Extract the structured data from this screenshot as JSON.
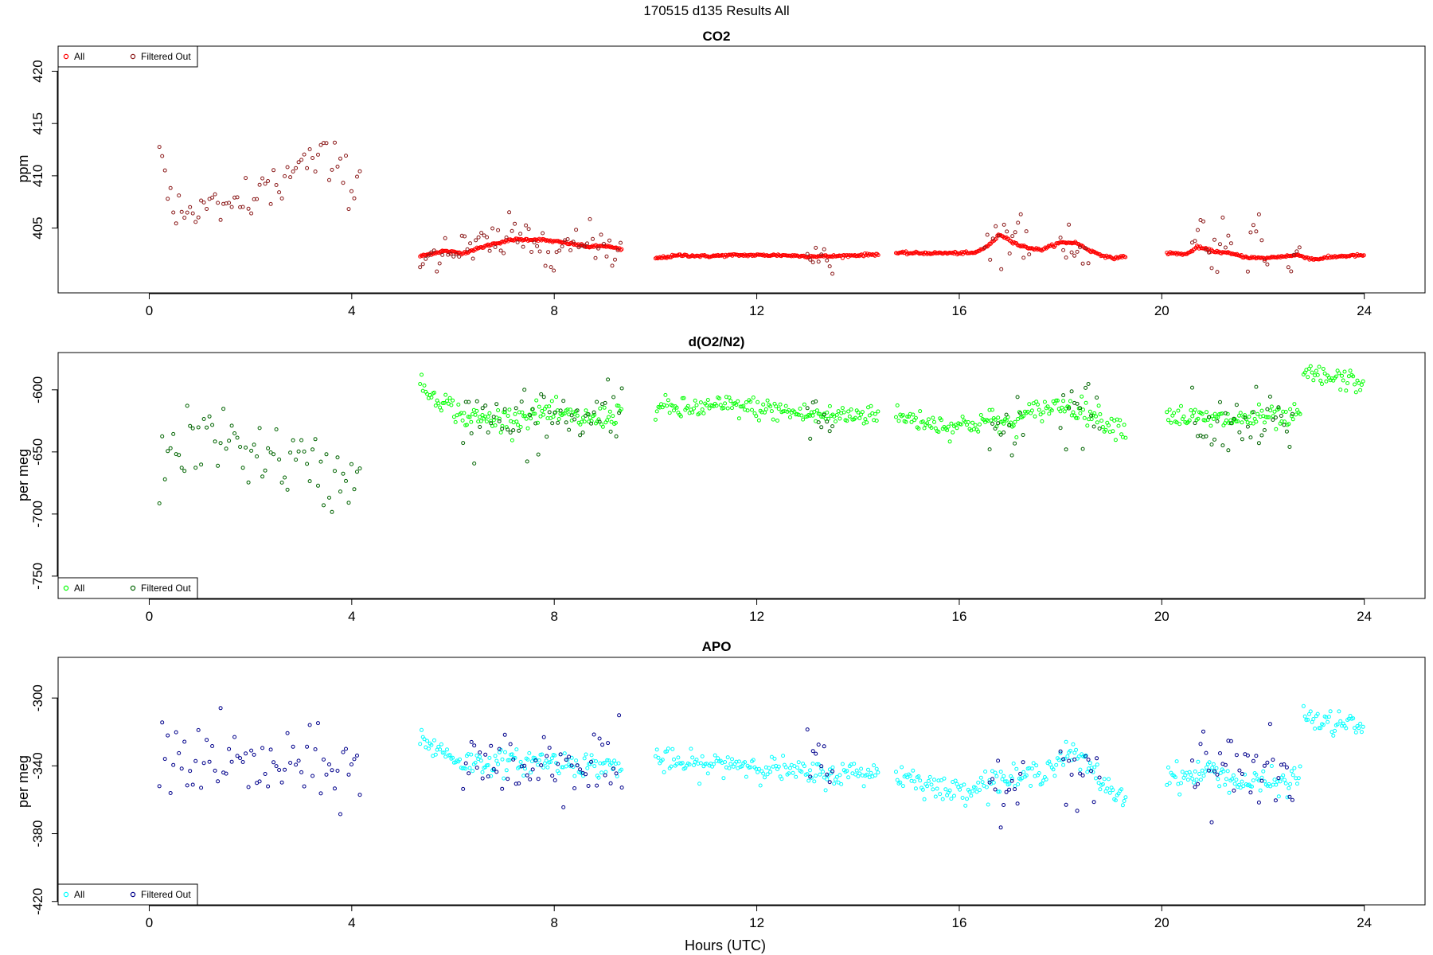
{
  "figure": {
    "title": "170515   d135   Results All",
    "xlabel": "Hours (UTC)"
  },
  "chart_data": [
    {
      "id": "co2",
      "type": "scatter",
      "title": "CO2",
      "ylabel": "ppm",
      "xlim": [
        -1.8,
        25.2
      ],
      "ylim": [
        398.8,
        422.4
      ],
      "xticks": [
        0,
        4,
        8,
        12,
        16,
        20,
        24
      ],
      "yticks": [
        405,
        410,
        415,
        420
      ],
      "legend_position": "top-left",
      "grid": false,
      "series": [
        {
          "name": "All",
          "color": "#ff0000",
          "segments": [
            {
              "x": [
                5.35,
                5.8,
                6.2,
                6.8,
                7.2,
                7.7,
                8.2,
                8.7,
                9.0,
                9.35
              ],
              "y": [
                402.3,
                402.8,
                402.6,
                403.5,
                403.9,
                403.9,
                403.6,
                403.2,
                403.3,
                402.9
              ]
            },
            {
              "x": [
                10.0,
                10.5,
                11.0,
                11.5,
                12.0,
                12.5,
                13.0,
                13.5,
                14.0,
                14.4
              ],
              "y": [
                402.1,
                402.4,
                402.3,
                402.4,
                402.4,
                402.4,
                402.3,
                402.3,
                402.4,
                402.5
              ]
            },
            {
              "x": [
                14.75,
                15.2,
                15.8,
                16.3,
                16.6,
                16.8,
                17.2,
                17.6,
                18.0,
                18.3,
                18.6,
                19.0,
                19.3
              ],
              "y": [
                402.6,
                402.6,
                402.6,
                402.6,
                403.4,
                404.4,
                403.3,
                402.9,
                403.6,
                403.6,
                402.8,
                402.1,
                402.3
              ]
            },
            {
              "x": [
                20.1,
                20.5,
                20.7,
                21.0,
                21.3,
                21.7,
                22.0,
                22.4,
                22.7,
                23.0,
                23.5,
                24.0
              ],
              "y": [
                402.6,
                402.5,
                403.2,
                402.8,
                402.6,
                402.2,
                402.1,
                402.3,
                402.4,
                402.0,
                402.3,
                402.4
              ]
            }
          ],
          "noise": 0.06,
          "spacing": 0.022
        },
        {
          "name": "Filtered Out",
          "color": "#8b1a1a",
          "segments": [
            {
              "x": [
                0.2,
                0.5,
                1.0,
                1.5,
                2.0,
                2.5,
                3.0,
                3.5,
                4.0,
                4.2
              ],
              "y": [
                411.0,
                406.5,
                406.5,
                406.5,
                408.0,
                409.0,
                411.0,
                411.5,
                409.5,
                409.5
              ]
            },
            {
              "x": [
                5.35,
                5.8,
                6.2,
                6.8,
                7.2,
                7.7,
                8.2,
                8.7,
                9.0,
                9.35
              ],
              "y": [
                402.3,
                402.8,
                402.6,
                403.5,
                403.9,
                403.9,
                403.6,
                403.2,
                403.3,
                402.9
              ]
            },
            {
              "x": [
                13.0,
                13.15,
                13.3,
                13.5
              ],
              "y": [
                402.5,
                403.0,
                402.6,
                402.5
              ]
            },
            {
              "x": [
                16.5,
                16.8,
                17.0,
                17.2,
                17.4
              ],
              "y": [
                403.0,
                404.2,
                404.2,
                404.3,
                403.0
              ]
            },
            {
              "x": [
                18.0,
                18.3,
                18.6
              ],
              "y": [
                403.9,
                403.4,
                402.8
              ]
            },
            {
              "x": [
                20.6,
                20.75,
                20.9,
                21.1,
                21.25,
                21.4
              ],
              "y": [
                402.8,
                405.5,
                402.8,
                402.8,
                405.8,
                402.8
              ]
            },
            {
              "x": [
                21.7,
                21.9,
                22.1
              ],
              "y": [
                402.4,
                405.0,
                402.3
              ]
            },
            {
              "x": [
                22.5,
                22.6,
                22.75
              ],
              "y": [
                402.5,
                403.3,
                402.4
              ]
            }
          ],
          "noise": 1.1,
          "spacing": 0.055
        }
      ]
    },
    {
      "id": "o2n2",
      "type": "scatter",
      "title": "d(O2/N2)",
      "ylabel": "per meg",
      "xlim": [
        -1.8,
        25.2
      ],
      "ylim": [
        -768,
        -570
      ],
      "xticks": [
        0,
        4,
        8,
        12,
        16,
        20,
        24
      ],
      "yticks": [
        -750,
        -700,
        -650,
        -600
      ],
      "legend_position": "bottom-left",
      "grid": false,
      "series": [
        {
          "name": "All",
          "color": "#00ff00",
          "segments": [
            {
              "x": [
                5.35,
                5.8,
                6.2,
                6.8,
                7.3,
                7.8,
                8.3,
                8.8,
                9.35
              ],
              "y": [
                -598,
                -608,
                -622,
                -624,
                -622,
                -618,
                -622,
                -624,
                -618
              ]
            },
            {
              "x": [
                10.0,
                10.5,
                11.0,
                11.5,
                12.0,
                12.5,
                13.0,
                13.5,
                14.0,
                14.4
              ],
              "y": [
                -614,
                -616,
                -614,
                -613,
                -615,
                -617,
                -620,
                -621,
                -620,
                -618
              ]
            },
            {
              "x": [
                14.75,
                15.2,
                15.7,
                16.2,
                16.6,
                17.0,
                17.5,
                18.0,
                18.5,
                19.0,
                19.3
              ],
              "y": [
                -622,
                -624,
                -629,
                -628,
                -624,
                -628,
                -617,
                -612,
                -617,
                -628,
                -630
              ]
            },
            {
              "x": [
                20.1,
                20.5,
                21.0,
                21.5,
                22.0,
                22.5,
                22.75
              ],
              "y": [
                -620,
                -622,
                -624,
                -624,
                -622,
                -624,
                -620
              ]
            },
            {
              "x": [
                22.8,
                23.2,
                23.6,
                24.0
              ],
              "y": [
                -587,
                -590,
                -592,
                -595
              ]
            }
          ],
          "noise": 4.5,
          "spacing": 0.028
        },
        {
          "name": "Filtered Out",
          "color": "#006400",
          "segments": [
            {
              "x": [
                0.2,
                0.5,
                1.0,
                1.5,
                2.0,
                2.5,
                3.0,
                3.5,
                4.0,
                4.2
              ],
              "y": [
                -668,
                -648,
                -640,
                -640,
                -648,
                -656,
                -660,
                -672,
                -668,
                -650
              ]
            },
            {
              "x": [
                6.2,
                6.8,
                7.3,
                7.8,
                8.3,
                8.8,
                9.35
              ],
              "y": [
                -630,
                -625,
                -630,
                -622,
                -624,
                -625,
                -618
              ]
            },
            {
              "x": [
                13.0,
                13.5
              ],
              "y": [
                -624,
                -622
              ]
            },
            {
              "x": [
                16.6,
                17.0,
                17.3
              ],
              "y": [
                -628,
                -632,
                -625
              ]
            },
            {
              "x": [
                18.0,
                18.4,
                18.8
              ],
              "y": [
                -616,
                -618,
                -622
              ]
            },
            {
              "x": [
                20.6,
                21.0,
                21.4,
                22.0,
                22.6
              ],
              "y": [
                -625,
                -640,
                -628,
                -630,
                -625
              ]
            }
          ],
          "noise": 14,
          "spacing": 0.055
        }
      ]
    },
    {
      "id": "apo",
      "type": "scatter",
      "title": "APO",
      "ylabel": "per meg",
      "xlim": [
        -1.8,
        25.2
      ],
      "ylim": [
        -422,
        -276
      ],
      "xticks": [
        0,
        4,
        8,
        12,
        16,
        20,
        24
      ],
      "yticks": [
        -420,
        -380,
        -340,
        -300
      ],
      "legend_position": "bottom-left",
      "grid": false,
      "series": [
        {
          "name": "All",
          "color": "#00ffff",
          "segments": [
            {
              "x": [
                5.35,
                5.7,
                6.2,
                6.8,
                7.3,
                7.8,
                8.3,
                8.8,
                9.35
              ],
              "y": [
                -324,
                -330,
                -338,
                -338,
                -338,
                -337,
                -338,
                -340,
                -340
              ]
            },
            {
              "x": [
                10.0,
                10.5,
                11.0,
                11.5,
                12.0,
                12.5,
                13.0,
                13.5,
                14.0,
                14.4
              ],
              "y": [
                -336,
                -339,
                -340,
                -338,
                -340,
                -342,
                -345,
                -345,
                -344,
                -344
              ]
            },
            {
              "x": [
                14.75,
                15.2,
                15.7,
                16.2,
                16.7,
                17.2,
                17.7,
                18.2,
                18.6,
                19.0,
                19.3
              ],
              "y": [
                -345,
                -348,
                -355,
                -353,
                -348,
                -348,
                -342,
                -332,
                -342,
                -355,
                -358
              ]
            },
            {
              "x": [
                20.1,
                20.5,
                21.0,
                21.5,
                22.0,
                22.5,
                22.75
              ],
              "y": [
                -345,
                -347,
                -342,
                -350,
                -350,
                -350,
                -344
              ]
            },
            {
              "x": [
                22.8,
                23.2,
                23.6,
                24.0
              ],
              "y": [
                -310,
                -315,
                -315,
                -318
              ]
            }
          ],
          "noise": 3.6,
          "spacing": 0.028
        },
        {
          "name": "Filtered Out",
          "color": "#00008b",
          "segments": [
            {
              "x": [
                0.2,
                0.5,
                1.0,
                1.5,
                2.0,
                2.5,
                3.0,
                3.5,
                4.0,
                4.2
              ],
              "y": [
                -340,
                -335,
                -335,
                -336,
                -342,
                -340,
                -340,
                -345,
                -340,
                -345
              ]
            },
            {
              "x": [
                6.2,
                6.8,
                7.3,
                7.8,
                8.3,
                8.8,
                9.35
              ],
              "y": [
                -338,
                -340,
                -340,
                -338,
                -337,
                -340,
                -340
              ]
            },
            {
              "x": [
                13.0,
                13.5
              ],
              "y": [
                -345,
                -346
              ]
            },
            {
              "x": [
                16.6,
                17.0,
                17.3
              ],
              "y": [
                -350,
                -348,
                -352
              ]
            },
            {
              "x": [
                18.0,
                18.4,
                18.8
              ],
              "y": [
                -335,
                -338,
                -342
              ]
            },
            {
              "x": [
                20.6,
                21.0,
                21.3,
                22.0,
                22.6
              ],
              "y": [
                -345,
                -345,
                -335,
                -348,
                -345
              ]
            }
          ],
          "noise": 11,
          "spacing": 0.055
        }
      ]
    }
  ]
}
